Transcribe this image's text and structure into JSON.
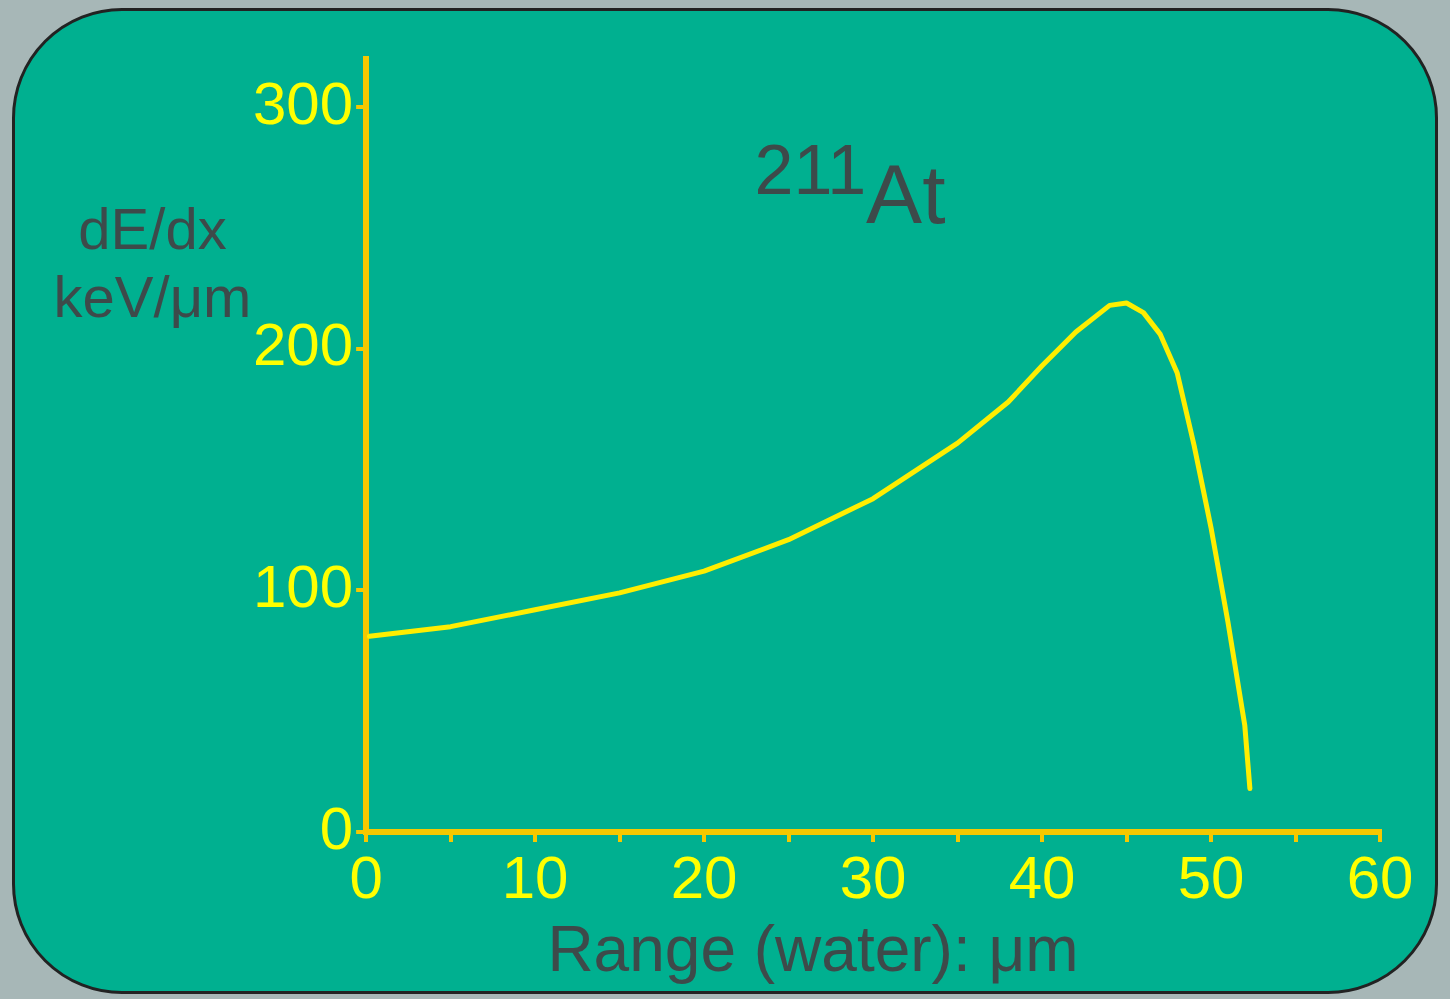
{
  "chart_data": {
    "type": "line",
    "xlabel": "Range (water): μm",
    "ylabel": "dE/dx keV/μm",
    "annotations": [
      "$^{211}$At"
    ],
    "x": [
      0.2,
      5,
      10,
      15,
      20,
      25,
      30,
      35,
      38,
      40,
      42,
      44,
      45,
      46,
      47,
      48,
      49,
      50,
      51,
      52,
      52.3
    ],
    "series": [
      {
        "color": "#ffee00",
        "values": [
          81,
          85,
          92,
          99,
          108,
          121,
          138,
          161,
          178,
          193,
          207,
          218,
          219,
          215,
          206,
          190,
          160,
          126,
          87,
          44,
          18
        ]
      }
    ],
    "xlim": [
      0,
      60
    ],
    "xticks": [
      0,
      {
        "value": 5,
        "label": null
      },
      10,
      {
        "value": 15,
        "label": null
      },
      20,
      {
        "value": 25,
        "label": null
      },
      30,
      {
        "value": 35,
        "label": null
      },
      40,
      {
        "value": 45,
        "label": null
      },
      50,
      {
        "value": 55,
        "label": null
      },
      60
    ],
    "ylim": [
      0,
      320
    ],
    "yticks": [
      0,
      100,
      200,
      300
    ],
    "grid": false,
    "legend": false,
    "marker": "none",
    "line_style": "solid"
  }
}
